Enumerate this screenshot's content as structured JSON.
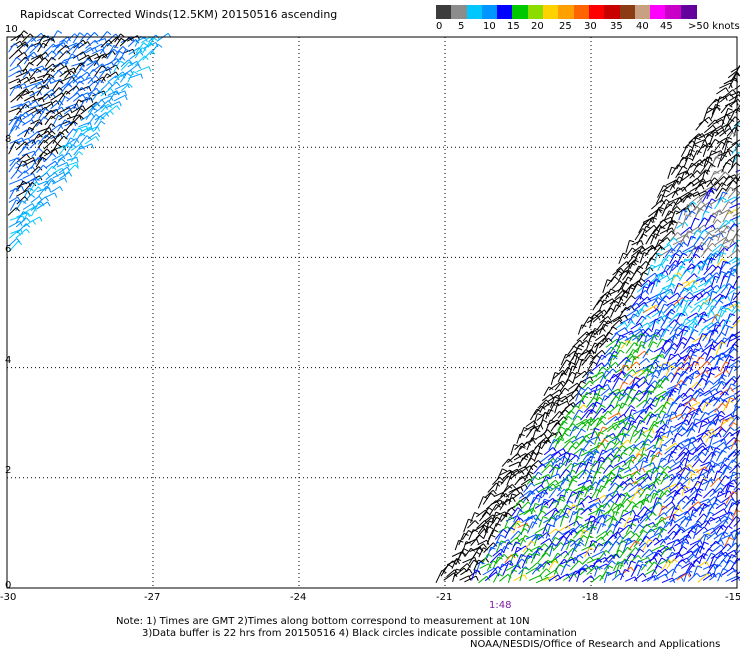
{
  "title": "Rapidscat Corrected Winds(12.5KM) 20150516 ascending",
  "legend": {
    "colors": [
      "#3c3c3c",
      "#8c8c8c",
      "#00c8ff",
      "#0096ff",
      "#0000ff",
      "#00c800",
      "#8cdc00",
      "#ffd200",
      "#ffa000",
      "#ff6400",
      "#ff0000",
      "#c80000",
      "#8c3c14",
      "#c8a082",
      "#ff00ff",
      "#c800c8",
      "#64009b"
    ],
    "labels": [
      "0",
      "5",
      "10",
      "15",
      "20",
      "25",
      "30",
      "35",
      "40",
      "45",
      ">50 knots"
    ]
  },
  "axes": {
    "x_ticks": [
      "-30",
      "-27",
      "-24",
      "-21",
      "-18",
      "-15"
    ],
    "y_ticks": [
      "0",
      "2",
      "4",
      "6",
      "8",
      "10"
    ]
  },
  "time_label": "1:48",
  "notes": {
    "line1": "Note: 1) Times are GMT 2)Times along bottom correspond to measurement at 10N",
    "line2": "3)Data buffer is 22 hrs from 20150516 4) Black circles indicate possible contamination"
  },
  "credit": "NOAA/NESDIS/Office of Research and Applications"
}
